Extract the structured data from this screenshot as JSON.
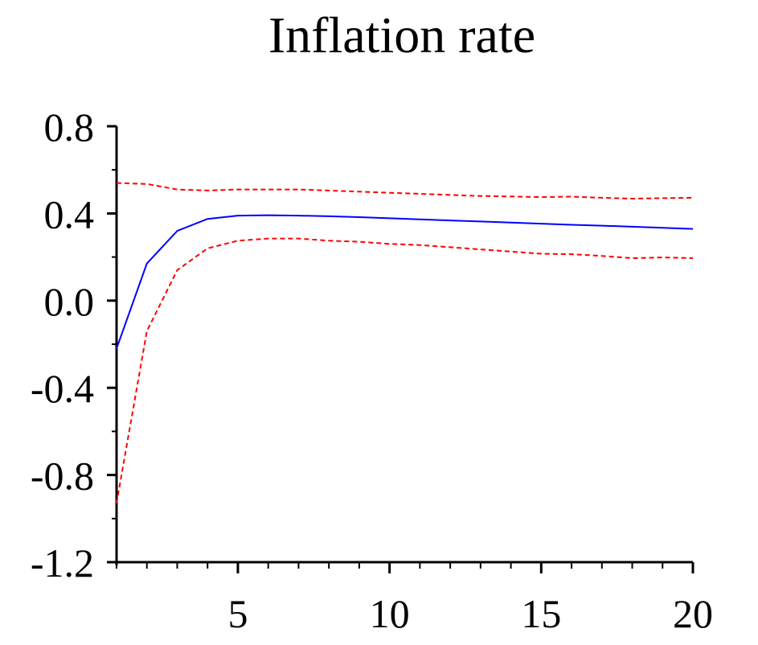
{
  "chart_data": {
    "type": "line",
    "title": "Inflation rate",
    "xlabel": "",
    "ylabel": "",
    "xlim": [
      1,
      20
    ],
    "ylim": [
      -1.2,
      0.8
    ],
    "x_ticks": [
      5,
      10,
      15,
      20
    ],
    "x_tick_labels": [
      "5",
      "10",
      "15",
      "20"
    ],
    "y_ticks": [
      -1.2,
      -0.8,
      -0.4,
      0.0,
      0.4,
      0.8
    ],
    "y_tick_labels": [
      "-1.2",
      "-0.8",
      "-0.4",
      "0.0",
      "0.4",
      "0.8"
    ],
    "grid": false,
    "x": [
      1,
      2,
      3,
      4,
      5,
      6,
      7,
      8,
      9,
      10,
      11,
      12,
      13,
      14,
      15,
      16,
      17,
      18,
      19,
      20
    ],
    "series": [
      {
        "role": "response",
        "color": "#0000ff",
        "style": "solid",
        "values": [
          -0.22,
          0.17,
          0.32,
          0.375,
          0.39,
          0.392,
          0.39,
          0.387,
          0.383,
          0.378,
          0.373,
          0.368,
          0.363,
          0.358,
          0.353,
          0.348,
          0.344,
          0.339,
          0.334,
          0.329
        ]
      },
      {
        "role": "upper-band",
        "color": "#ff0000",
        "style": "dashed",
        "values": [
          0.54,
          0.535,
          0.51,
          0.505,
          0.51,
          0.51,
          0.51,
          0.505,
          0.5,
          0.495,
          0.49,
          0.485,
          0.48,
          0.478,
          0.475,
          0.477,
          0.472,
          0.468,
          0.47,
          0.472
        ]
      },
      {
        "role": "lower-band",
        "color": "#ff0000",
        "style": "dashed",
        "values": [
          -0.93,
          -0.14,
          0.14,
          0.24,
          0.275,
          0.285,
          0.285,
          0.275,
          0.27,
          0.26,
          0.255,
          0.245,
          0.235,
          0.225,
          0.215,
          0.213,
          0.205,
          0.195,
          0.198,
          0.195
        ]
      }
    ]
  }
}
